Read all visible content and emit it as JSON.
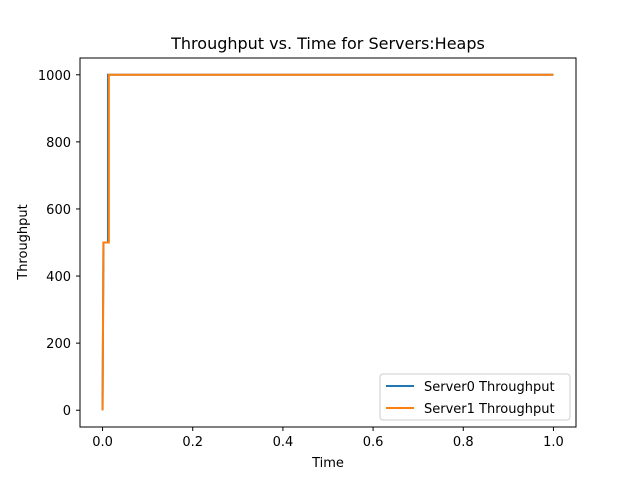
{
  "chart_data": {
    "type": "line",
    "title": "Throughput vs. Time for Servers:Heaps",
    "xlabel": "Time",
    "ylabel": "Throughput",
    "xlim": [
      -0.05,
      1.05
    ],
    "ylim": [
      -50,
      1050
    ],
    "xticks": [
      0.0,
      0.2,
      0.4,
      0.6,
      0.8,
      1.0
    ],
    "xtick_labels": [
      "0.0",
      "0.2",
      "0.4",
      "0.6",
      "0.8",
      "1.0"
    ],
    "yticks": [
      0,
      200,
      400,
      600,
      800,
      1000
    ],
    "ytick_labels": [
      "0",
      "200",
      "400",
      "600",
      "800",
      "1000"
    ],
    "grid": false,
    "legend": "lower-right",
    "series": [
      {
        "name": "Server0 Throughput",
        "color": "#1f77b4",
        "x": [
          0.0,
          0.002,
          0.002,
          0.012,
          0.012,
          1.0
        ],
        "y": [
          0,
          500,
          500,
          500,
          1000,
          1000
        ]
      },
      {
        "name": "Server1 Throughput",
        "color": "#ff7f0e",
        "x": [
          0.0,
          0.002,
          0.002,
          0.014,
          0.014,
          1.0
        ],
        "y": [
          0,
          500,
          500,
          500,
          1000,
          1000
        ]
      }
    ]
  }
}
